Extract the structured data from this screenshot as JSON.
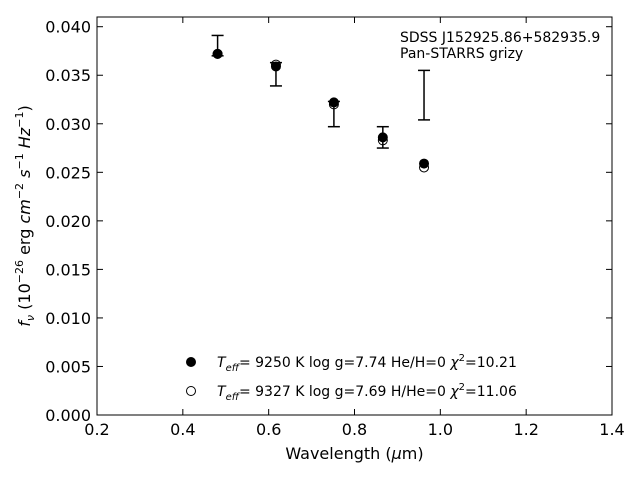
{
  "chart_data": {
    "type": "scatter",
    "title": "",
    "xlabel": "Wavelength (μm)",
    "ylabel": "f_ν (10^-26 erg cm^-2 s^-1 Hz^-1)",
    "xlim": [
      0.2,
      1.4
    ],
    "ylim": [
      0.0,
      0.041
    ],
    "xticks": [
      "0.2",
      "0.4",
      "0.6",
      "0.8",
      "1.0",
      "1.2",
      "1.4"
    ],
    "yticks": [
      "0.000",
      "0.005",
      "0.010",
      "0.015",
      "0.020",
      "0.025",
      "0.030",
      "0.035",
      "0.040"
    ],
    "annotation_lines": [
      "SDSS J152925.86+582935.9",
      "Pan-STARRS grizy"
    ],
    "observed": [
      {
        "x": 0.481,
        "y": 0.0373,
        "ylow": 0.037,
        "yhigh": 0.0391
      },
      {
        "x": 0.617,
        "y": 0.0361,
        "ylow": 0.0339,
        "yhigh": 0.0363
      },
      {
        "x": 0.752,
        "y": 0.032,
        "ylow": 0.0297,
        "yhigh": 0.0323
      },
      {
        "x": 0.866,
        "y": 0.0284,
        "ylow": 0.0275,
        "yhigh": 0.0297
      },
      {
        "x": 0.962,
        "y": 0.0355,
        "ylow": 0.0304,
        "yhigh": 0.0355
      }
    ],
    "series": [
      {
        "marker": "filled-circle",
        "x": [
          0.481,
          0.617,
          0.752,
          0.866,
          0.962
        ],
        "y": [
          0.0372,
          0.0359,
          0.0322,
          0.0286,
          0.0259
        ],
        "legend": {
          "teff": "9250 K",
          "logg": "log g=7.74",
          "comp": "He/H=0",
          "chi2": "=10.21"
        }
      },
      {
        "marker": "open-circle",
        "x": [
          0.481,
          0.617,
          0.752,
          0.866,
          0.962
        ],
        "y": [
          0.0372,
          0.0361,
          0.032,
          0.0283,
          0.0255
        ],
        "legend": {
          "teff": "9327 K",
          "logg": "log g=7.69",
          "comp": "H/He=0",
          "chi2": "=11.06"
        }
      }
    ],
    "legend_placement": "bottom-center",
    "grid": false
  }
}
